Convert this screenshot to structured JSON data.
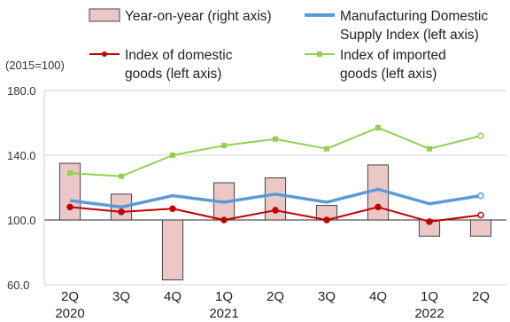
{
  "chart_data": {
    "type": "bar+line",
    "unit_label": "(2015=100)",
    "categories": [
      "2Q",
      "3Q",
      "4Q",
      "1Q",
      "2Q",
      "3Q",
      "4Q",
      "1Q",
      "2Q"
    ],
    "year_labels": [
      "2020",
      "",
      "",
      "2021",
      "",
      "",
      "",
      "2022",
      ""
    ],
    "y_left": {
      "range": [
        60,
        180
      ],
      "ticks": [
        "60.0",
        "100.0",
        "140.0",
        "180.0"
      ],
      "tick_values": [
        60,
        100,
        140,
        180
      ]
    },
    "y_right": {
      "baseline_value": 0
    },
    "bars": {
      "name": "Year-on-year (right axis)",
      "axis": "right",
      "values": [
        35,
        16,
        -37,
        23,
        26,
        9,
        34,
        -10,
        -10
      ],
      "color": "#ecc7c7",
      "stroke": "#444444"
    },
    "series": [
      {
        "name": "Manufacturing Domestic Supply Index (left axis)",
        "legend_lines": [
          "Manufacturing Domestic",
          "Supply Index (left axis)"
        ],
        "axis": "left",
        "color": "#5b9bd5",
        "values": [
          112,
          108,
          115,
          111,
          116,
          111,
          119,
          110,
          115
        ]
      },
      {
        "name": "Index of domestic goods (left axis)",
        "legend_lines": [
          "Index of domestic",
          "goods (left axis)"
        ],
        "axis": "left",
        "color": "#c00000",
        "values": [
          108,
          105,
          107,
          100,
          106,
          100,
          108,
          99,
          103
        ]
      },
      {
        "name": "Index of imported goods (left axis)",
        "legend_lines": [
          "Index of imported",
          "goods (left axis)"
        ],
        "axis": "left",
        "color": "#92d050",
        "values": [
          129,
          127,
          140,
          146,
          150,
          144,
          157,
          144,
          152
        ]
      }
    ]
  }
}
